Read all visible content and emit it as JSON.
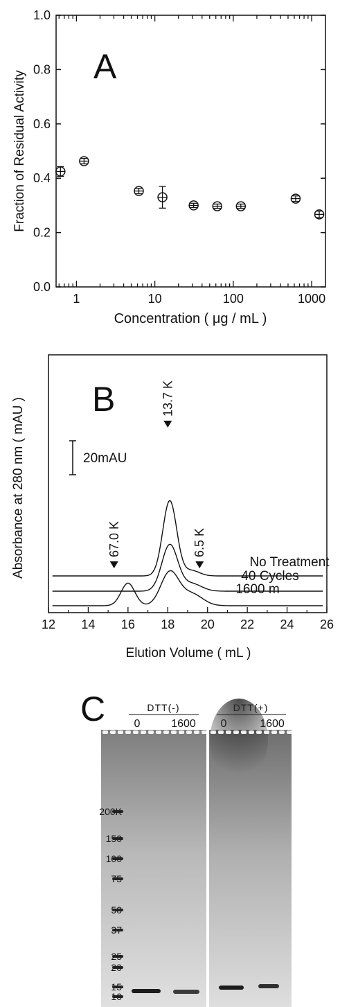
{
  "panel_a": {
    "panel_label": "A",
    "xlabel": "Concentration ( μg / mL )",
    "ylabel": "Fraction of Residual Activity"
  },
  "panel_b": {
    "panel_label": "B",
    "xlabel": "Elution Volume ( mL )",
    "ylabel": "Absorbance at 280 nm ( mAU )",
    "scale_bar_label": "20mAU"
  },
  "panel_c": {
    "panel_label": "C",
    "groups": [
      {
        "label": "DTT(-)",
        "lanes": [
          "0",
          "1600"
        ]
      },
      {
        "label": "DTT(+)",
        "lanes": [
          "0",
          "1600"
        ]
      }
    ],
    "markers": [
      "200K",
      "150",
      "100",
      "75",
      "50",
      "37",
      "25",
      "20",
      "15",
      "10"
    ]
  },
  "chart_data": [
    {
      "type": "scatter",
      "title": "",
      "xlabel": "Concentration ( μg / mL )",
      "ylabel": "Fraction of Residual Activity",
      "xscale": "log",
      "xlim": [
        0.55,
        1500
      ],
      "ylim": [
        0,
        1.0
      ],
      "x_ticks": [
        1,
        10,
        100,
        1000
      ],
      "x_tick_labels": [
        "1",
        "10",
        "100",
        "1000"
      ],
      "y_ticks": [
        0,
        0.2,
        0.4,
        0.6,
        0.8,
        1.0
      ],
      "y_tick_labels": [
        "0.0",
        "0.2",
        "0.4",
        "0.6",
        "0.8",
        "1.0"
      ],
      "grid": false,
      "points": [
        {
          "x": 0.625,
          "y": 0.425,
          "err": 0.018
        },
        {
          "x": 1.25,
          "y": 0.463,
          "err": 0.01
        },
        {
          "x": 6.25,
          "y": 0.353,
          "err": 0.01
        },
        {
          "x": 12.5,
          "y": 0.33,
          "err": 0.04
        },
        {
          "x": 31.25,
          "y": 0.3,
          "err": 0.008
        },
        {
          "x": 62.5,
          "y": 0.297,
          "err": 0.008
        },
        {
          "x": 125,
          "y": 0.297,
          "err": 0.008
        },
        {
          "x": 625,
          "y": 0.325,
          "err": 0.01
        },
        {
          "x": 1250,
          "y": 0.267,
          "err": 0.012
        }
      ]
    },
    {
      "type": "line",
      "title": "",
      "xlabel": "Elution Volume ( mL )",
      "ylabel": "Absorbance at 280 nm ( mAU )",
      "xlim": [
        12,
        26
      ],
      "x_ticks": [
        12,
        14,
        16,
        18,
        20,
        22,
        24,
        26
      ],
      "x_tick_labels": [
        "12",
        "14",
        "16",
        "18",
        "20",
        "22",
        "24",
        "26"
      ],
      "grid": false,
      "markers": [
        {
          "x": 15.3,
          "label": "67.0 K"
        },
        {
          "x": 18.0,
          "label": "13.7 K"
        },
        {
          "x": 19.6,
          "label": "6.5 K"
        }
      ],
      "series": [
        {
          "name": "No Treatment",
          "baseline": 0,
          "peaks": [
            {
              "center": 18.1,
              "height": 70,
              "width": 0.35
            },
            {
              "center": 19.2,
              "height": 5,
              "width": 0.4
            }
          ]
        },
        {
          "name": "40 Cycles",
          "baseline": 0,
          "peaks": [
            {
              "center": 18.1,
              "height": 43,
              "width": 0.4
            },
            {
              "center": 19.2,
              "height": 7,
              "width": 0.5
            }
          ]
        },
        {
          "name": "1600 m",
          "baseline": 0,
          "peaks": [
            {
              "center": 16.0,
              "height": 21,
              "width": 0.35
            },
            {
              "center": 18.1,
              "height": 31,
              "width": 0.45
            },
            {
              "center": 19.2,
              "height": 11,
              "width": 0.55
            }
          ]
        }
      ]
    }
  ]
}
